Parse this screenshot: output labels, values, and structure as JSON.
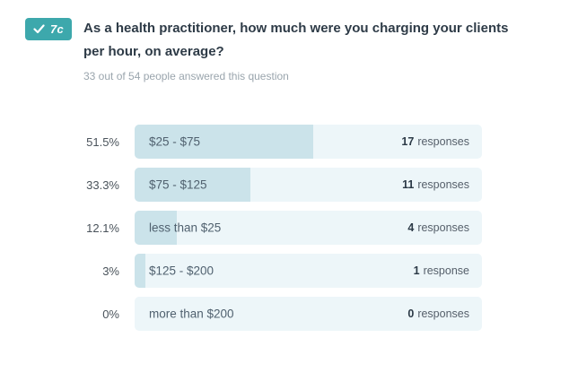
{
  "header": {
    "badge": {
      "check": "answered",
      "label": "7c"
    },
    "question": "As a health practitioner, how much were you charging your clients per hour, on average?",
    "answered_summary": "33 out of 54 people answered this question"
  },
  "rows": [
    {
      "percent": "51.5%",
      "label": "$25 - $75",
      "count": "17",
      "unit": "responses",
      "fill": 51.5
    },
    {
      "percent": "33.3%",
      "label": "$75 - $125",
      "count": "11",
      "unit": "responses",
      "fill": 33.3
    },
    {
      "percent": "12.1%",
      "label": "less than $25",
      "count": "4",
      "unit": "responses",
      "fill": 12.1
    },
    {
      "percent": "3%",
      "label": "$125 - $200",
      "count": "1",
      "unit": "response",
      "fill": 3
    },
    {
      "percent": "0%",
      "label": "more than $200",
      "count": "0",
      "unit": "responses",
      "fill": 0
    }
  ],
  "chart_data": {
    "type": "bar",
    "orientation": "horizontal",
    "title": "As a health practitioner, how much were you charging your clients per hour, on average?",
    "subtitle": "33 out of 54 people answered this question",
    "categories": [
      "$25 - $75",
      "$75 - $125",
      "less than $25",
      "$125 - $200",
      "more than $200"
    ],
    "values": [
      17,
      11,
      4,
      1,
      0
    ],
    "percentages": [
      51.5,
      33.3,
      12.1,
      3,
      0
    ],
    "total_respondents": 54,
    "total_answered": 33,
    "xlim": [
      0,
      100
    ],
    "grid": false,
    "legend": false
  },
  "colors": {
    "badge": "#3da8ac",
    "bar_fill": "#cbe3ea",
    "bar_track": "#edf6f9",
    "title_text": "#2e3b47",
    "subtitle_text": "#9aa5ad"
  }
}
